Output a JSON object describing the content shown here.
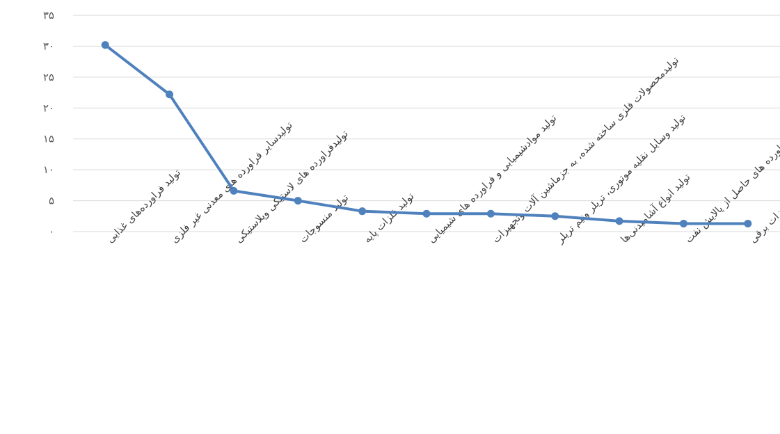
{
  "chart_data": {
    "type": "line",
    "title": "",
    "xlabel": "",
    "ylabel": "",
    "ylim": [
      0,
      35
    ],
    "y_ticks": [
      "۰",
      "۵",
      "۱۰",
      "۱۵",
      "۲۰",
      "۲۵",
      "۳۰",
      "۳۵"
    ],
    "grid": true,
    "legend": "none",
    "colors": {
      "series": "#4f81bd",
      "grid": "#d9d9d9"
    },
    "categories": [
      "تولید فراورده‌های غذایی",
      "تولیدسایر فراورده های معدنی غیر فلزی",
      "تولیدفراورده های لاستیکی وپلاستیکی",
      "تولید منسوجات",
      "تولید فلزات پایه",
      "تولید موادشیمیایی و فراورده های شیمیایی",
      "تولیدمحصولات فلزی ساخته شده، به جزماشین آلات وتجهیزات",
      "تولید وسایل نقلیه موتوری، تریلر ونیم تریلر",
      "تولید انواع آشامیدنی‌ها",
      "تولید کک و فراورده های حاصل از پالایش نفت",
      "تولید تجهیزات برقی"
    ],
    "series": [
      {
        "values": [
          30.2,
          22.2,
          6.6,
          5.0,
          3.3,
          2.9,
          2.9,
          2.5,
          1.7,
          1.3,
          1.3
        ]
      }
    ]
  }
}
